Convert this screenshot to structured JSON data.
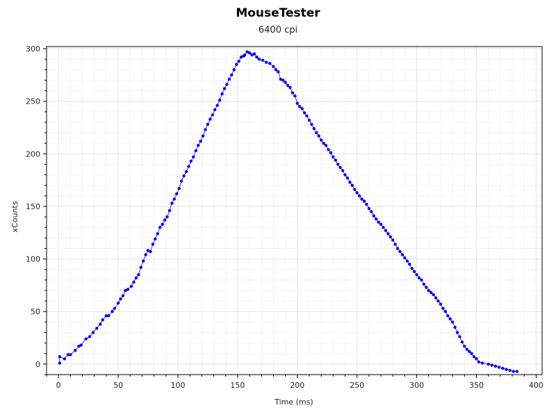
{
  "chart_data": {
    "type": "scatter",
    "title": "MouseTester",
    "subtitle": "6400 cpi",
    "xlabel": "Time (ms)",
    "ylabel": "xCounts",
    "xlim": [
      -10,
      405
    ],
    "ylim": [
      -10,
      302
    ],
    "xticks": [
      0,
      50,
      100,
      150,
      200,
      250,
      300,
      350,
      400
    ],
    "yticks": [
      0,
      50,
      100,
      150,
      200,
      250,
      300
    ],
    "grid": true,
    "series": [
      {
        "color": "#0000ff",
        "points": [
          [
            1,
            1
          ],
          [
            1,
            7
          ],
          [
            5,
            5
          ],
          [
            8,
            9
          ],
          [
            10,
            9
          ],
          [
            14,
            13
          ],
          [
            17,
            17
          ],
          [
            19,
            18
          ],
          [
            23,
            24
          ],
          [
            26,
            26
          ],
          [
            29,
            30
          ],
          [
            32,
            34
          ],
          [
            35,
            38
          ],
          [
            37,
            42
          ],
          [
            40,
            46
          ],
          [
            42,
            46
          ],
          [
            45,
            50
          ],
          [
            47,
            53
          ],
          [
            50,
            58
          ],
          [
            52,
            62
          ],
          [
            54,
            65
          ],
          [
            56,
            70
          ],
          [
            58,
            71
          ],
          [
            61,
            74
          ],
          [
            63,
            78
          ],
          [
            65,
            82
          ],
          [
            67,
            85
          ],
          [
            69,
            92
          ],
          [
            71,
            98
          ],
          [
            73,
            104
          ],
          [
            75,
            108
          ],
          [
            77,
            107
          ],
          [
            79,
            114
          ],
          [
            81,
            119
          ],
          [
            83,
            124
          ],
          [
            85,
            130
          ],
          [
            87,
            133
          ],
          [
            89,
            137
          ],
          [
            91,
            140
          ],
          [
            93,
            146
          ],
          [
            95,
            153
          ],
          [
            97,
            157
          ],
          [
            99,
            162
          ],
          [
            101,
            167
          ],
          [
            103,
            174
          ],
          [
            105,
            179
          ],
          [
            107,
            183
          ],
          [
            109,
            188
          ],
          [
            111,
            193
          ],
          [
            113,
            197
          ],
          [
            115,
            203
          ],
          [
            117,
            208
          ],
          [
            119,
            212
          ],
          [
            121,
            217
          ],
          [
            123,
            223
          ],
          [
            125,
            228
          ],
          [
            127,
            233
          ],
          [
            129,
            237
          ],
          [
            131,
            242
          ],
          [
            133,
            246
          ],
          [
            135,
            251
          ],
          [
            137,
            257
          ],
          [
            139,
            262
          ],
          [
            141,
            266
          ],
          [
            143,
            271
          ],
          [
            145,
            275
          ],
          [
            147,
            280
          ],
          [
            149,
            285
          ],
          [
            151,
            288
          ],
          [
            153,
            292
          ],
          [
            155,
            293
          ],
          [
            156,
            294
          ],
          [
            158,
            297
          ],
          [
            160,
            296
          ],
          [
            162,
            294
          ],
          [
            164,
            295
          ],
          [
            166,
            292
          ],
          [
            168,
            290
          ],
          [
            171,
            289
          ],
          [
            174,
            287
          ],
          [
            177,
            286
          ],
          [
            180,
            283
          ],
          [
            182,
            280
          ],
          [
            184,
            278
          ],
          [
            186,
            271
          ],
          [
            188,
            270
          ],
          [
            190,
            268
          ],
          [
            192,
            265
          ],
          [
            194,
            263
          ],
          [
            196,
            258
          ],
          [
            198,
            255
          ],
          [
            200,
            248
          ],
          [
            202,
            245
          ],
          [
            204,
            243
          ],
          [
            206,
            239
          ],
          [
            208,
            236
          ],
          [
            210,
            232
          ],
          [
            212,
            228
          ],
          [
            214,
            224
          ],
          [
            216,
            220
          ],
          [
            218,
            217
          ],
          [
            220,
            213
          ],
          [
            222,
            210
          ],
          [
            224,
            208
          ],
          [
            226,
            204
          ],
          [
            228,
            201
          ],
          [
            230,
            197
          ],
          [
            232,
            194
          ],
          [
            234,
            190
          ],
          [
            236,
            187
          ],
          [
            238,
            184
          ],
          [
            240,
            180
          ],
          [
            242,
            177
          ],
          [
            244,
            173
          ],
          [
            246,
            170
          ],
          [
            248,
            166
          ],
          [
            250,
            163
          ],
          [
            252,
            160
          ],
          [
            254,
            157
          ],
          [
            256,
            155
          ],
          [
            258,
            152
          ],
          [
            260,
            148
          ],
          [
            262,
            145
          ],
          [
            264,
            141
          ],
          [
            266,
            138
          ],
          [
            268,
            135
          ],
          [
            270,
            133
          ],
          [
            272,
            130
          ],
          [
            274,
            127
          ],
          [
            276,
            124
          ],
          [
            278,
            121
          ],
          [
            280,
            118
          ],
          [
            282,
            114
          ],
          [
            284,
            110
          ],
          [
            286,
            107
          ],
          [
            288,
            104
          ],
          [
            290,
            101
          ],
          [
            292,
            98
          ],
          [
            294,
            95
          ],
          [
            296,
            91
          ],
          [
            298,
            88
          ],
          [
            300,
            85
          ],
          [
            302,
            82
          ],
          [
            304,
            80
          ],
          [
            306,
            76
          ],
          [
            308,
            73
          ],
          [
            310,
            70
          ],
          [
            312,
            68
          ],
          [
            314,
            66
          ],
          [
            316,
            63
          ],
          [
            318,
            60
          ],
          [
            320,
            57
          ],
          [
            322,
            53
          ],
          [
            324,
            50
          ],
          [
            326,
            46
          ],
          [
            328,
            43
          ],
          [
            330,
            40
          ],
          [
            332,
            35
          ],
          [
            334,
            30
          ],
          [
            336,
            26
          ],
          [
            338,
            21
          ],
          [
            340,
            17
          ],
          [
            342,
            14
          ],
          [
            344,
            12
          ],
          [
            346,
            10
          ],
          [
            348,
            7
          ],
          [
            350,
            5
          ],
          [
            352,
            2
          ],
          [
            355,
            1
          ],
          [
            360,
            0
          ],
          [
            363,
            -1
          ],
          [
            366,
            -2
          ],
          [
            369,
            -3
          ],
          [
            372,
            -4
          ],
          [
            375,
            -5
          ],
          [
            378,
            -6
          ],
          [
            381,
            -7
          ],
          [
            384,
            -7
          ]
        ]
      }
    ]
  }
}
